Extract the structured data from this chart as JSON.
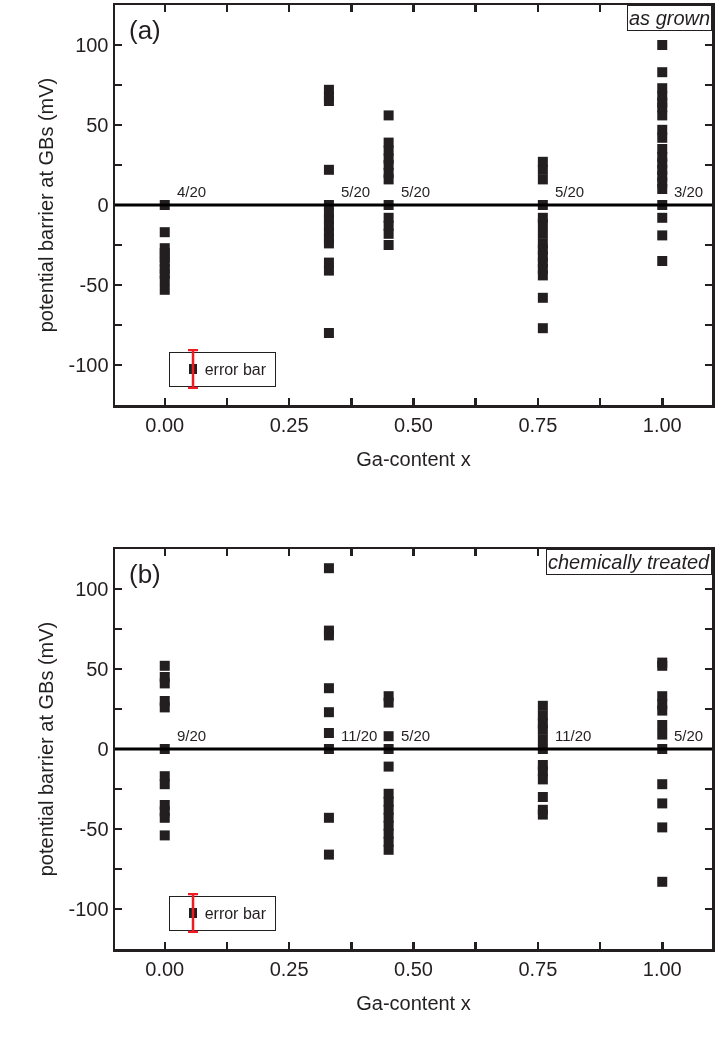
{
  "chart_data": [
    {
      "type": "scatter",
      "xlabel": "Ga-content x",
      "ylabel": "potential barrier at GBs (mV)",
      "marker": "square",
      "grid": false,
      "xlim": [
        -0.1,
        1.1
      ],
      "ylim": [
        -125,
        125
      ],
      "xticks": [
        {
          "value": 0,
          "label": "0.00"
        },
        {
          "value": 0.125,
          "label": null
        },
        {
          "value": 0.25,
          "label": "0.25"
        },
        {
          "value": 0.375,
          "label": null
        },
        {
          "value": 0.5,
          "label": "0.50"
        },
        {
          "value": 0.625,
          "label": null
        },
        {
          "value": 0.75,
          "label": "0.75"
        },
        {
          "value": 0.875,
          "label": null
        },
        {
          "value": 1,
          "label": "1.00"
        }
      ],
      "yticks": [
        -100,
        {
          "value": -75,
          "label": null
        },
        -50,
        {
          "value": -25,
          "label": null
        },
        0,
        {
          "value": 25,
          "label": null
        },
        50,
        {
          "value": 75,
          "label": null
        },
        100
      ],
      "ref_lines": [
        {
          "axis": "y",
          "value": 0,
          "color": "#000000"
        }
      ],
      "series": [
        {
          "color": "#231f20",
          "x": [
            0,
            0,
            0,
            0,
            0,
            0,
            0,
            0,
            0,
            0,
            0.33,
            0.33,
            0.33,
            0.33,
            0.33,
            0.33,
            0.33,
            0.33,
            0.33,
            0.33,
            0.33,
            0.33,
            0.33,
            0.33,
            0.45,
            0.45,
            0.45,
            0.45,
            0.45,
            0.45,
            0.45,
            0.45,
            0.45,
            0.45,
            0.45,
            0.45,
            0.76,
            0.76,
            0.76,
            0.76,
            0.76,
            0.76,
            0.76,
            0.76,
            0.76,
            0.76,
            0.76,
            0.76,
            0.76,
            0.76,
            0.76,
            1,
            1,
            1,
            1,
            1,
            1,
            1,
            1,
            1,
            1,
            1,
            1,
            1,
            1,
            1,
            1,
            1,
            1,
            1,
            1
          ],
          "values": [
            0,
            -17,
            -27,
            -30,
            -33,
            -36,
            -40,
            -43,
            -47,
            -53,
            72,
            68,
            65,
            22,
            0,
            -5,
            -9,
            -13,
            -17,
            -21,
            -24,
            -36,
            -41,
            -80,
            56,
            39,
            34,
            29,
            25,
            20,
            16,
            0,
            -8,
            -13,
            -18,
            -25,
            27,
            22,
            16,
            0,
            -8,
            -12,
            -18,
            -24,
            -28,
            -32,
            -36,
            -40,
            -44,
            -58,
            -77,
            100,
            83,
            73,
            68,
            64,
            61,
            56,
            47,
            42,
            35,
            30,
            26,
            22,
            18,
            14,
            10,
            0,
            -8,
            -19,
            -35
          ]
        }
      ],
      "annotations": [
        "(a)",
        "as grown",
        "error bar",
        {
          "text": "4/20",
          "x": 0,
          "y": 0
        },
        {
          "text": "5/20",
          "x": 0.33,
          "y": 0
        },
        {
          "text": "5/20",
          "x": 0.45,
          "y": 0
        },
        {
          "text": "5/20",
          "x": 0.76,
          "y": 0
        },
        {
          "text": "3/20",
          "x": 1,
          "y": 0
        }
      ]
    },
    {
      "type": "scatter",
      "xlabel": "Ga-content x",
      "ylabel": "potential barrier at GBs (mV)",
      "marker": "square",
      "grid": false,
      "xlim": [
        -0.1,
        1.1
      ],
      "ylim": [
        -125,
        125
      ],
      "xticks": [
        {
          "value": 0,
          "label": "0.00"
        },
        {
          "value": 0.125,
          "label": null
        },
        {
          "value": 0.25,
          "label": "0.25"
        },
        {
          "value": 0.375,
          "label": null
        },
        {
          "value": 0.5,
          "label": "0.50"
        },
        {
          "value": 0.625,
          "label": null
        },
        {
          "value": 0.75,
          "label": "0.75"
        },
        {
          "value": 0.875,
          "label": null
        },
        {
          "value": 1,
          "label": "1.00"
        }
      ],
      "yticks": [
        -100,
        {
          "value": -75,
          "label": null
        },
        -50,
        {
          "value": -25,
          "label": null
        },
        0,
        {
          "value": 25,
          "label": null
        },
        50,
        {
          "value": 75,
          "label": null
        },
        100
      ],
      "ref_lines": [
        {
          "axis": "y",
          "value": 0,
          "color": "#000000"
        }
      ],
      "series": [
        {
          "color": "#231f20",
          "x": [
            0,
            0,
            0,
            0,
            0,
            0,
            0,
            0,
            0,
            0,
            0,
            0,
            0.33,
            0.33,
            0.33,
            0.33,
            0.33,
            0.33,
            0.33,
            0.33,
            0.33,
            0.45,
            0.45,
            0.45,
            0.45,
            0.45,
            0.45,
            0.45,
            0.45,
            0.45,
            0.45,
            0.45,
            0.45,
            0.45,
            0.76,
            0.76,
            0.76,
            0.76,
            0.76,
            0.76,
            0.76,
            0.76,
            0.76,
            0.76,
            0.76,
            0.76,
            1,
            1,
            1,
            1,
            1,
            1,
            1,
            1,
            1,
            1,
            1,
            1
          ],
          "values": [
            52,
            45,
            41,
            30,
            26,
            0,
            -17,
            -22,
            -35,
            -39,
            -43,
            -54,
            113,
            74,
            71,
            38,
            23,
            10,
            0,
            -43,
            -66,
            33,
            29,
            8,
            0,
            -11,
            -28,
            -33,
            -38,
            -43,
            -48,
            -53,
            -58,
            -63,
            27,
            21,
            16,
            12,
            6,
            0,
            -10,
            -14,
            -19,
            -30,
            -38,
            -41,
            54,
            52,
            33,
            28,
            24,
            15,
            9,
            0,
            -22,
            -34,
            -49,
            -83
          ]
        }
      ],
      "annotations": [
        "(b)",
        "chemically treated",
        "error bar",
        {
          "text": "9/20",
          "x": 0,
          "y": 0
        },
        {
          "text": "11/20",
          "x": 0.33,
          "y": 0
        },
        {
          "text": "5/20",
          "x": 0.45,
          "y": 0
        },
        {
          "text": "11/20",
          "x": 0.76,
          "y": 0
        },
        {
          "text": "5/20",
          "x": 1,
          "y": 0
        }
      ]
    }
  ]
}
